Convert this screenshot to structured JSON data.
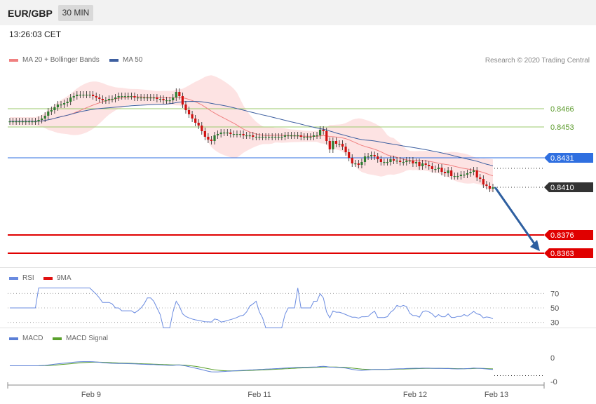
{
  "header": {
    "pair": "EUR/GBP",
    "timeframe": "30 MIN"
  },
  "timestamp": "13:26:03 CET",
  "credit": "Research © 2020 Trading Central",
  "colors": {
    "ma20": "#f08080",
    "ma50": "#3d5fa0",
    "bands": "#fcd9d9",
    "bull": "#2e7d32",
    "bear": "#d01010",
    "rsi": "#6a8be0",
    "rsi9": "#e01010",
    "macd": "#5b7fd6",
    "signal": "#5aa02c",
    "support": "#e00000",
    "pivot": "#2f6fe0",
    "resist": "#9bc96b",
    "last": "#333333",
    "arrow": "#2e5fa0"
  },
  "chart_data": [
    {
      "type": "candlestick",
      "legend": [
        "MA 20 + Bollinger Bands",
        "MA 50"
      ],
      "x_labels": [
        "Feb 9",
        "Feb 11",
        "Feb 12",
        "Feb 13"
      ],
      "ylim": [
        0.8356,
        0.8494
      ],
      "close": [
        0.8457,
        0.8457,
        0.8457,
        0.8457,
        0.8457,
        0.8457,
        0.8457,
        0.8457,
        0.8457,
        0.8458,
        0.8459,
        0.8461,
        0.8464,
        0.8465,
        0.8467,
        0.8469,
        0.8469,
        0.847,
        0.8471,
        0.8474,
        0.8475,
        0.8476,
        0.8476,
        0.8476,
        0.8476,
        0.8476,
        0.8475,
        0.8474,
        0.8473,
        0.8472,
        0.8472,
        0.8473,
        0.8473,
        0.8474,
        0.8475,
        0.8475,
        0.8475,
        0.8475,
        0.8475,
        0.8474,
        0.8474,
        0.8474,
        0.8474,
        0.8474,
        0.8474,
        0.8474,
        0.8473,
        0.8473,
        0.8472,
        0.8472,
        0.8472,
        0.8474,
        0.8478,
        0.8475,
        0.8469,
        0.8465,
        0.8462,
        0.8459,
        0.8456,
        0.8454,
        0.845,
        0.8446,
        0.8444,
        0.8443,
        0.8447,
        0.8448,
        0.8449,
        0.8449,
        0.8449,
        0.8448,
        0.8448,
        0.8448,
        0.8448,
        0.8447,
        0.8447,
        0.8447,
        0.8446,
        0.8446,
        0.8446,
        0.8446,
        0.8446,
        0.8446,
        0.8446,
        0.8446,
        0.8446,
        0.8446,
        0.8447,
        0.8447,
        0.8447,
        0.8447,
        0.8447,
        0.8446,
        0.8446,
        0.8446,
        0.8446,
        0.8447,
        0.8447,
        0.8451,
        0.845,
        0.8443,
        0.8437,
        0.8443,
        0.8441,
        0.8441,
        0.8439,
        0.8435,
        0.8431,
        0.8427,
        0.8427,
        0.8426,
        0.8428,
        0.8432,
        0.8432,
        0.8433,
        0.8432,
        0.843,
        0.8428,
        0.8428,
        0.8428,
        0.843,
        0.8429,
        0.8429,
        0.8428,
        0.8428,
        0.8429,
        0.8429,
        0.8427,
        0.8428,
        0.8425,
        0.8427,
        0.8426,
        0.8425,
        0.8423,
        0.8423,
        0.8424,
        0.8421,
        0.842,
        0.8422,
        0.8418,
        0.8418,
        0.8418,
        0.8419,
        0.8419,
        0.842,
        0.8421,
        0.8422,
        0.8417,
        0.8416,
        0.8412,
        0.8411,
        0.8409,
        0.841
      ]
    },
    {
      "type": "line",
      "legend": [
        "RSI",
        "9MA"
      ],
      "y_ticks": [
        70,
        50,
        30
      ],
      "ylim": [
        20,
        80
      ]
    },
    {
      "type": "line",
      "legend": [
        "MACD",
        "MACD Signal"
      ],
      "y_ticks": [
        "0",
        "-0"
      ],
      "ylim": [
        -0.0012,
        0.0012
      ]
    }
  ],
  "levels": [
    {
      "label": "0.8466",
      "value": 0.8466,
      "kind": "resist"
    },
    {
      "label": "0.8453",
      "value": 0.8453,
      "kind": "resist"
    },
    {
      "label": "0.8431",
      "value": 0.8431,
      "kind": "pivot"
    },
    {
      "label": "0.8410",
      "value": 0.841,
      "kind": "last"
    },
    {
      "label": "0.8376",
      "value": 0.8376,
      "kind": "support"
    },
    {
      "label": "0.8363",
      "value": 0.8363,
      "kind": "support"
    }
  ],
  "rsi_ticks": [
    "70",
    "50",
    "30"
  ],
  "macd_ticks": [
    "0",
    "-0"
  ],
  "x_ticks": [
    "Feb 9",
    "Feb 11",
    "Feb 12",
    "Feb 13"
  ]
}
